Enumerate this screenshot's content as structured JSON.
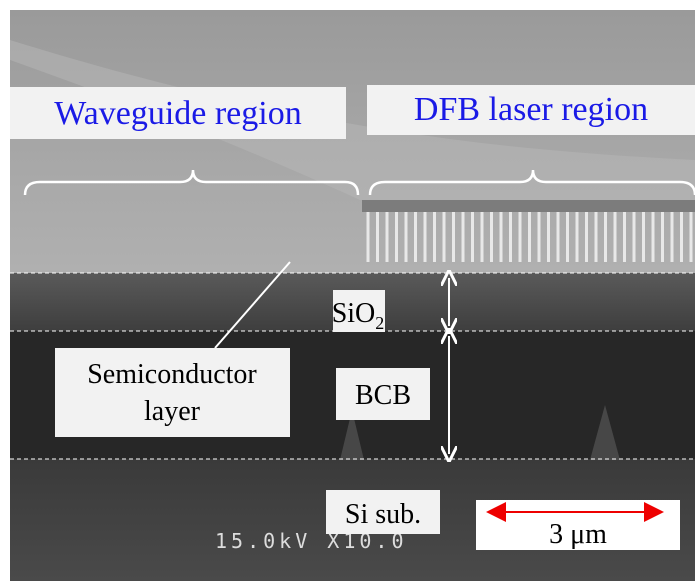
{
  "labels": {
    "waveguide": "Waveguide region",
    "dfb": "DFB laser region",
    "sio2": {
      "text": "SiO",
      "subscript": "2"
    },
    "semiconductor": {
      "lines": [
        "Semiconductor",
        "layer"
      ]
    },
    "bcb": "BCB",
    "si_sub": "Si sub.",
    "scale_bar": "3 μm",
    "sem_info": "15.0kV X10.0"
  }
}
